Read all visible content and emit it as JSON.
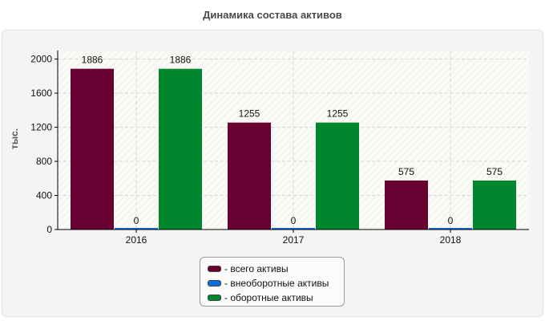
{
  "chart_data": {
    "type": "bar",
    "title": "Динамика состава активов",
    "ylabel": "тыс.",
    "categories": [
      "2016",
      "2017",
      "2018"
    ],
    "series": [
      {
        "name": "- всего активы",
        "color": "#680032",
        "values": [
          1886,
          1255,
          575
        ]
      },
      {
        "name": "- внеоборотные активы",
        "color": "#0c6ddf",
        "values": [
          0,
          0,
          0
        ]
      },
      {
        "name": "- оборотные активы",
        "color": "#00872e",
        "values": [
          1886,
          1255,
          575
        ]
      }
    ],
    "yticks": [
      0,
      400,
      800,
      1200,
      1600,
      2000
    ],
    "ylim": [
      0,
      2100
    ],
    "grid": true,
    "legend_position": "bottom"
  }
}
